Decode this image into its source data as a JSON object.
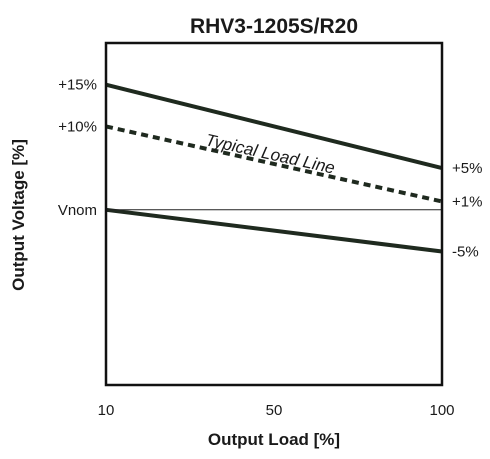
{
  "chart_data": {
    "type": "line",
    "title": "RHV3-1205S/R20",
    "xlabel": "Output Load [%]",
    "ylabel": "Output Voltage [%]",
    "xlim": [
      10,
      100
    ],
    "ylim": [
      -21,
      20
    ],
    "x_ticks": [
      {
        "value": 10,
        "label": "10"
      },
      {
        "value": 50,
        "label": "50"
      },
      {
        "value": 100,
        "label": "100"
      }
    ],
    "y_ticks_left": [
      {
        "value": 15,
        "label": "+15%"
      },
      {
        "value": 10,
        "label": "+10%"
      },
      {
        "value": 0,
        "label": "Vnom"
      }
    ],
    "y_labels_right": [
      {
        "value": 5,
        "label": "+5%"
      },
      {
        "value": 1,
        "label": "+1%"
      },
      {
        "value": -5,
        "label": "-5%"
      }
    ],
    "series": [
      {
        "x": [
          10,
          100
        ],
        "values": [
          15,
          5
        ],
        "style": "solid"
      },
      {
        "x": [
          10,
          100
        ],
        "values": [
          10,
          1
        ],
        "style": "dashed"
      },
      {
        "x": [
          10,
          100
        ],
        "values": [
          0,
          -5
        ],
        "style": "solid"
      },
      {
        "x": [
          10,
          100
        ],
        "values": [
          0,
          0
        ],
        "style": "reference"
      }
    ],
    "annotations": [
      {
        "text": "Typical Load Line",
        "x": 50,
        "y": 7
      }
    ],
    "grid": false,
    "colors": {
      "line": "#1f2a1f",
      "text": "#1a1a1a",
      "frame": "#111111"
    }
  }
}
